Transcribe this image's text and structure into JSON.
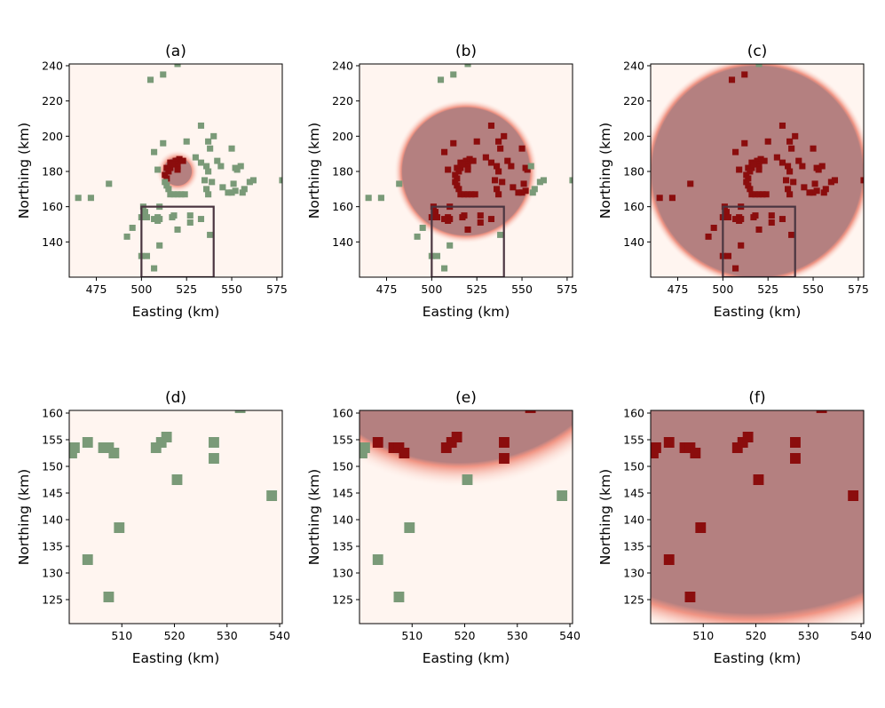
{
  "chart_data": {
    "type": "scatter",
    "description": "Six-panel map: facility sites with heatmap of influence radius",
    "colors": {
      "background": "#fff5f0",
      "inside_overlay": "#b48080",
      "edge_glow": "#ef8a78",
      "active_marker": "#8b0d0d",
      "inactive_marker": "#7a9a78",
      "inset_box": "#4a3540"
    },
    "panels": [
      {
        "id": "a",
        "title": "(a)",
        "xlabel": "Easting (km)",
        "ylabel": "Northing (km)",
        "xlim": [
          460,
          578
        ],
        "ylim": [
          120,
          241
        ],
        "xticks": [
          475,
          500,
          525,
          550,
          575
        ],
        "yticks": [
          140,
          160,
          180,
          200,
          220,
          240
        ],
        "center": [
          520,
          180
        ],
        "radius": 8,
        "edge_width": 4,
        "marker_size": 3.5,
        "view": "full",
        "inset_box": [
          500,
          120,
          540,
          160
        ]
      },
      {
        "id": "b",
        "title": "(b)",
        "xlabel": "Easting (km)",
        "ylabel": "Northing (km)",
        "xlim": [
          460,
          578
        ],
        "ylim": [
          120,
          241
        ],
        "xticks": [
          475,
          500,
          525,
          550,
          575
        ],
        "yticks": [
          140,
          160,
          180,
          200,
          220,
          240
        ],
        "center": [
          519,
          180
        ],
        "radius": 36,
        "edge_width": 4,
        "marker_size": 3.5,
        "view": "full",
        "inset_box": [
          500,
          120,
          540,
          160
        ]
      },
      {
        "id": "c",
        "title": "(c)",
        "xlabel": "Easting (km)",
        "ylabel": "Northing (km)",
        "xlim": [
          460,
          578
        ],
        "ylim": [
          120,
          241
        ],
        "xticks": [
          475,
          500,
          525,
          550,
          575
        ],
        "yticks": [
          140,
          160,
          180,
          200,
          220,
          240
        ],
        "center": [
          519,
          180
        ],
        "radius": 59.5,
        "edge_width": 4,
        "marker_size": 3.5,
        "view": "full",
        "inset_box": [
          500,
          120,
          540,
          160
        ]
      },
      {
        "id": "d",
        "title": "(d)",
        "xlabel": "Easting (km)",
        "ylabel": "Northing (km)",
        "xlim": [
          500,
          540.5
        ],
        "ylim": [
          120.5,
          160.5
        ],
        "xticks": [
          510,
          520,
          530,
          540
        ],
        "yticks": [
          125,
          130,
          135,
          140,
          145,
          150,
          155,
          160
        ],
        "center": [
          520,
          180
        ],
        "radius": 8,
        "edge_width": 4,
        "marker_size": 2,
        "view": "zoom"
      },
      {
        "id": "e",
        "title": "(e)",
        "xlabel": "Easting (km)",
        "ylabel": "Northing (km)",
        "xlim": [
          500,
          540.5
        ],
        "ylim": [
          120.5,
          160.5
        ],
        "xticks": [
          510,
          520,
          530,
          540
        ],
        "yticks": [
          125,
          130,
          135,
          140,
          145,
          150,
          155,
          160
        ],
        "center": [
          519,
          185.5
        ],
        "radius": 36,
        "edge_width": 4,
        "marker_size": 2,
        "view": "zoom"
      },
      {
        "id": "f",
        "title": "(f)",
        "xlabel": "Easting (km)",
        "ylabel": "Northing (km)",
        "xlim": [
          500,
          540.5
        ],
        "ylim": [
          120.5,
          160.5
        ],
        "xticks": [
          510,
          520,
          530,
          540
        ],
        "yticks": [
          125,
          130,
          135,
          140,
          145,
          150,
          155,
          160
        ],
        "center": [
          519,
          180
        ],
        "radius": 59.5,
        "edge_width": 4,
        "marker_size": 2,
        "view": "zoom"
      }
    ],
    "full_points": [
      [
        505,
        232
      ],
      [
        512,
        235
      ],
      [
        520,
        241
      ],
      [
        520,
        186
      ],
      [
        521,
        187
      ],
      [
        523,
        186
      ],
      [
        519,
        186
      ],
      [
        516,
        185
      ],
      [
        518,
        185
      ],
      [
        519,
        184
      ],
      [
        520,
        183
      ],
      [
        514,
        182
      ],
      [
        516,
        182
      ],
      [
        515,
        180
      ],
      [
        513,
        178
      ],
      [
        514,
        176
      ],
      [
        513,
        174
      ],
      [
        514,
        172
      ],
      [
        515,
        170
      ],
      [
        516,
        167
      ],
      [
        518,
        167
      ],
      [
        520,
        167
      ],
      [
        522,
        167
      ],
      [
        524,
        167
      ],
      [
        509,
        181
      ],
      [
        517,
        184
      ],
      [
        520,
        181
      ],
      [
        533,
        206
      ],
      [
        540,
        200
      ],
      [
        537,
        197
      ],
      [
        538,
        193
      ],
      [
        530,
        188
      ],
      [
        533,
        185
      ],
      [
        536,
        183
      ],
      [
        537,
        180
      ],
      [
        542,
        186
      ],
      [
        544,
        183
      ],
      [
        535,
        175
      ],
      [
        539,
        174
      ],
      [
        550,
        193
      ],
      [
        552,
        182
      ],
      [
        553,
        181
      ],
      [
        555,
        183
      ],
      [
        551,
        173
      ],
      [
        552,
        169
      ],
      [
        550,
        168
      ],
      [
        556,
        168
      ],
      [
        557,
        170
      ],
      [
        560,
        174
      ],
      [
        562,
        175
      ],
      [
        578,
        175
      ],
      [
        507,
        191
      ],
      [
        512,
        196
      ],
      [
        525,
        197
      ],
      [
        536,
        170
      ],
      [
        537,
        167
      ],
      [
        545,
        171
      ],
      [
        548,
        168
      ],
      [
        482,
        173
      ],
      [
        465,
        165
      ],
      [
        472,
        165
      ],
      [
        501,
        160
      ],
      [
        502,
        157
      ],
      [
        500,
        154
      ],
      [
        503,
        154
      ],
      [
        509,
        154
      ],
      [
        510,
        153
      ],
      [
        509,
        152
      ],
      [
        518,
        155
      ],
      [
        517,
        154
      ],
      [
        507,
        153
      ],
      [
        520,
        147
      ],
      [
        527,
        155
      ],
      [
        527,
        151
      ],
      [
        533,
        153
      ],
      [
        538,
        144
      ],
      [
        510,
        138
      ],
      [
        503,
        132
      ],
      [
        507,
        125
      ],
      [
        492,
        143
      ],
      [
        495,
        148
      ],
      [
        500,
        132
      ],
      [
        510,
        160
      ]
    ],
    "zoom_points": [
      [
        500.5,
        152.5
      ],
      [
        501,
        153.5
      ],
      [
        503.5,
        154.5
      ],
      [
        506.5,
        153.5
      ],
      [
        507.5,
        153.5
      ],
      [
        508.5,
        152.5
      ],
      [
        516.5,
        153.5
      ],
      [
        517.5,
        154.5
      ],
      [
        518.5,
        155.5
      ],
      [
        527.5,
        154.5
      ],
      [
        527.5,
        151.5
      ],
      [
        520.5,
        147.5
      ],
      [
        538.5,
        144.5
      ],
      [
        509.5,
        138.5
      ],
      [
        503.5,
        132.5
      ],
      [
        507.5,
        125.5
      ],
      [
        532.5,
        161
      ]
    ]
  }
}
